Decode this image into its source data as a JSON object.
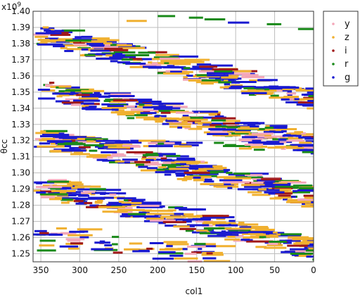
{
  "chart_data": {
    "type": "scatter",
    "title": "",
    "xlabel": "col1",
    "ylabel": "θcc",
    "xlim": [
      360,
      0
    ],
    "x_reversed": true,
    "ylim": [
      1.245,
      1.4
    ],
    "y_exponent_label": "x10",
    "y_exponent_power": "9",
    "x_ticks": [
      "350",
      "300",
      "250",
      "200",
      "150",
      "100",
      "50",
      "0"
    ],
    "x_tick_values": [
      350,
      300,
      250,
      200,
      150,
      100,
      50,
      0
    ],
    "y_ticks": [
      "1.25",
      "1.26",
      "1.27",
      "1.28",
      "1.29",
      "1.30",
      "1.31",
      "1.32",
      "1.33",
      "1.34",
      "1.35",
      "1.36",
      "1.37",
      "1.38",
      "1.39",
      "1.40"
    ],
    "y_tick_values": [
      1.25,
      1.26,
      1.27,
      1.28,
      1.29,
      1.3,
      1.31,
      1.32,
      1.33,
      1.34,
      1.35,
      1.36,
      1.37,
      1.38,
      1.39,
      1.4
    ],
    "grid": true,
    "legend_position": "top-right outside",
    "series": [
      {
        "name": "y",
        "color": "#f4a7b9"
      },
      {
        "name": "z",
        "color": "#f0b030"
      },
      {
        "name": "i",
        "color": "#a01818"
      },
      {
        "name": "r",
        "color": "#1a8a1a"
      },
      {
        "name": "g",
        "color": "#1a1ad0"
      }
    ],
    "bands": [
      {
        "x_start": 360,
        "x_end": 0,
        "y_start": 1.386,
        "y_end": 1.345
      },
      {
        "x_start": 360,
        "x_end": 0,
        "y_start": 1.352,
        "y_end": 1.317
      },
      {
        "x_start": 360,
        "x_end": 0,
        "y_start": 1.322,
        "y_end": 1.284
      },
      {
        "x_start": 360,
        "x_end": 0,
        "y_start": 1.292,
        "y_end": 1.252
      },
      {
        "x_start": 360,
        "x_end": 130,
        "y_start": 1.262,
        "y_end": 1.249
      },
      {
        "x_start": 360,
        "x_end": 0,
        "y_start": 1.32,
        "y_end": 1.315
      }
    ]
  }
}
